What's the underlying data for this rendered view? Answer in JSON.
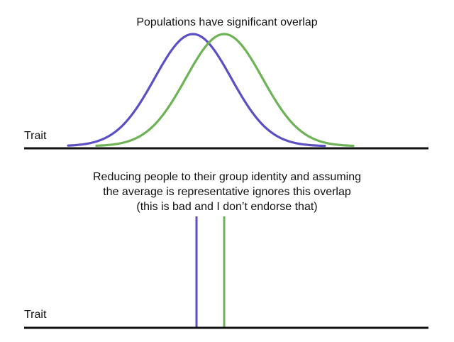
{
  "top_panel": {
    "title": "Populations have significant overlap",
    "axis_label": "Trait"
  },
  "bottom_panel": {
    "caption_lines": [
      "Reducing people to their group identity and assuming",
      "the average is representative ignores this overlap",
      "(this is bad and I don’t endorse that)"
    ],
    "axis_label": "Trait"
  },
  "colors": {
    "group_a": "#5a4fc4",
    "group_b": "#6db356",
    "axis": "#111111"
  }
}
